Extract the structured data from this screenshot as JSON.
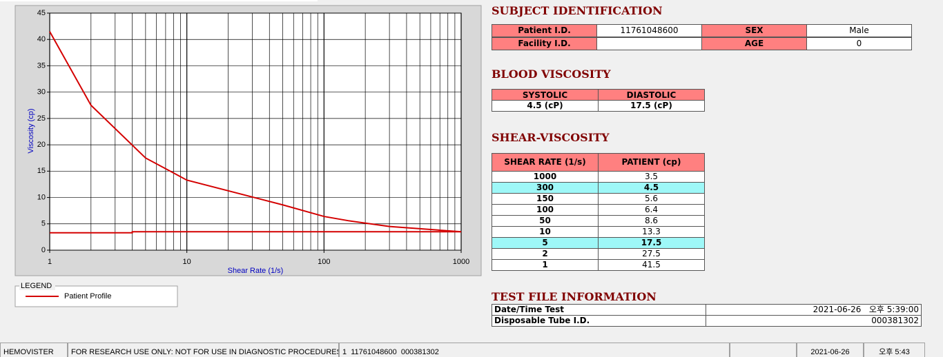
{
  "chart_data": {
    "type": "line",
    "xlabel": "Shear Rate (1/s)",
    "ylabel": "Viscosity (cp)",
    "xscale": "log",
    "xlim": [
      1,
      1000
    ],
    "xticks": [
      1,
      10,
      100,
      1000
    ],
    "xminorticks": [
      2,
      3,
      4,
      5,
      6,
      7,
      8,
      9,
      20,
      30,
      40,
      50,
      60,
      70,
      80,
      90,
      200,
      300,
      400,
      500,
      600,
      700,
      800,
      900
    ],
    "ylim": [
      0,
      45
    ],
    "yticks": [
      0,
      5,
      10,
      15,
      20,
      25,
      30,
      35,
      40,
      45
    ],
    "grid": true,
    "legend_title": "LEGEND",
    "series": [
      {
        "name": "Patient Profile",
        "color": "#d40000",
        "x": [
          1,
          2,
          5,
          10,
          50,
          100,
          150,
          300,
          1000
        ],
        "values": [
          41.5,
          27.5,
          17.5,
          13.3,
          8.6,
          6.4,
          5.6,
          4.5,
          3.5
        ]
      },
      {
        "color": "#d40000",
        "x": [
          1,
          4,
          4,
          1000
        ],
        "values": [
          3.3,
          3.3,
          3.5,
          3.5
        ]
      }
    ]
  },
  "subject": {
    "title": "SUBJECT IDENTIFICATION",
    "rows": [
      [
        "Patient I.D.",
        "11761048600",
        "SEX",
        "Male"
      ],
      [
        "Facility I.D.",
        null,
        "AGE",
        "0"
      ]
    ]
  },
  "blood_viscosity": {
    "title": "BLOOD VISCOSITY",
    "headers": [
      "SYSTOLIC",
      "DIASTOLIC"
    ],
    "values": [
      "4.5 (cP)",
      "17.5 (cP)"
    ]
  },
  "shear_viscosity": {
    "title": "SHEAR-VISCOSITY",
    "headers": [
      "SHEAR RATE (1/s)",
      "PATIENT (cp)"
    ],
    "rows": [
      [
        "1000",
        "3.5"
      ],
      [
        "300",
        "4.5"
      ],
      [
        "150",
        "5.6"
      ],
      [
        "100",
        "6.4"
      ],
      [
        "50",
        "8.6"
      ],
      [
        "10",
        "13.3"
      ],
      [
        "5",
        "17.5"
      ],
      [
        "2",
        "27.5"
      ],
      [
        "1",
        "41.5"
      ]
    ],
    "highlight_rows": [
      1,
      6
    ],
    "highlight_color": "#9ef8f8"
  },
  "test_file": {
    "title": "TEST FILE INFORMATION",
    "rows": [
      [
        "Date/Time Test",
        "2021-06-26   오후 5:39:00"
      ],
      [
        "Disposable Tube I.D.",
        "000381302"
      ]
    ]
  },
  "status_bar": [
    "HEMOVISTER",
    "FOR RESEARCH USE ONLY: NOT FOR USE IN DIAGNOSTIC PROCEDURES",
    "1  11761048600  000381302",
    "",
    "2021-06-26",
    "오후 5:43"
  ]
}
